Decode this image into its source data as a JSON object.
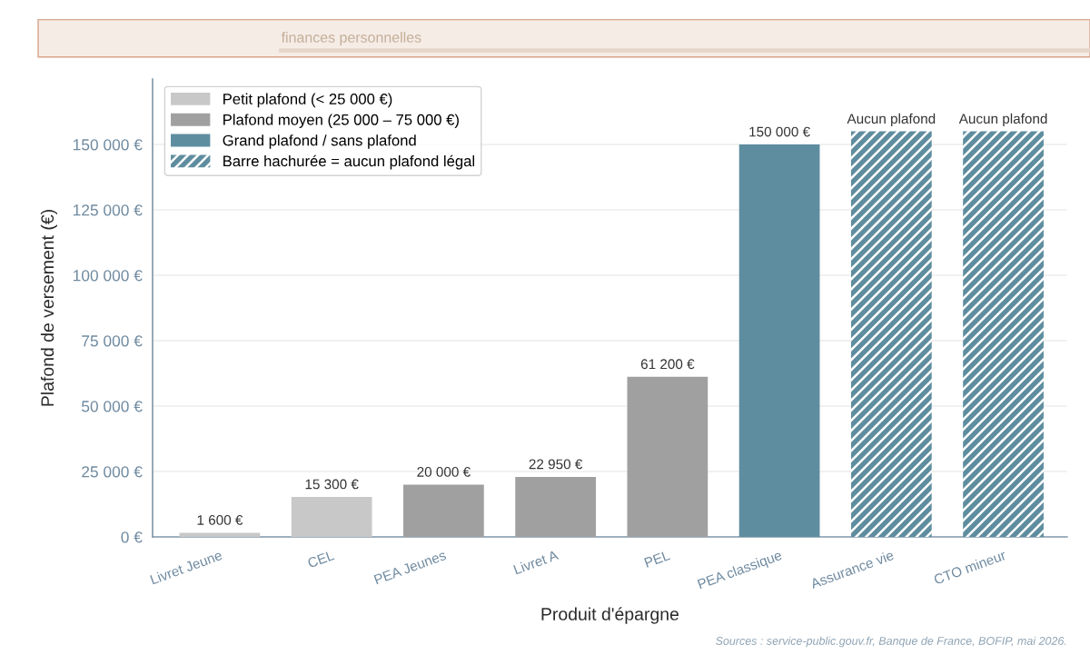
{
  "chart_data": {
    "type": "bar",
    "subtitle": "finances personnelles",
    "xlabel": "Produit d'épargne",
    "ylabel": "Plafond de versement (€)",
    "categories": [
      "Livret Jeune",
      "CEL",
      "PEA Jeunes",
      "Livret A",
      "PEL",
      "PEA classique",
      "Assurance vie",
      "CTO mineur"
    ],
    "series": [
      {
        "name": "Petit plafond (< 25 000 €)",
        "color": "#c8c8c8",
        "values": [
          1600,
          15300,
          null,
          null,
          null,
          null,
          null,
          null
        ],
        "value_labels": [
          "1 600 €",
          "15 300 €",
          null,
          null,
          null,
          null,
          null,
          null
        ]
      },
      {
        "name": "Plafond moyen (25 000 – 75 000 €)",
        "color": "#a0a0a0",
        "values": [
          null,
          null,
          20000,
          22950,
          61200,
          null,
          null,
          null
        ],
        "value_labels": [
          null,
          null,
          "20 000 €",
          "22 950 €",
          "61 200 €",
          null,
          null,
          null
        ]
      },
      {
        "name": "Grand plafond / sans plafond",
        "color": "#5e8d9f",
        "values": [
          null,
          null,
          null,
          null,
          null,
          150000,
          null,
          null
        ],
        "value_labels": [
          null,
          null,
          null,
          null,
          null,
          "150 000 €",
          null,
          null
        ]
      },
      {
        "name": "Barre hachurée = aucun plafond légal",
        "color": "#5e8d9f",
        "values": [
          null,
          null,
          null,
          null,
          null,
          null,
          155000,
          155000
        ],
        "value_labels": [
          null,
          null,
          null,
          null,
          null,
          null,
          "Aucun plafond",
          "Aucun plafond"
        ]
      }
    ],
    "ylim": [
      0,
      175000
    ],
    "yticks": [
      {
        "value": 0,
        "label": "0 €"
      },
      {
        "value": 25000,
        "label": "25 000 €"
      },
      {
        "value": 50000,
        "label": "50 000 €"
      },
      {
        "value": 75000,
        "label": "75 000 €"
      },
      {
        "value": 100000,
        "label": "100 000 €"
      },
      {
        "value": 125000,
        "label": "125 000 €"
      },
      {
        "value": 150000,
        "label": "150 000 €"
      }
    ],
    "grid": "y",
    "legend": "top left",
    "annotations": [
      "Sources : service-public.gouv.fr, Banque de France, BOFIP, mai 2026."
    ]
  }
}
